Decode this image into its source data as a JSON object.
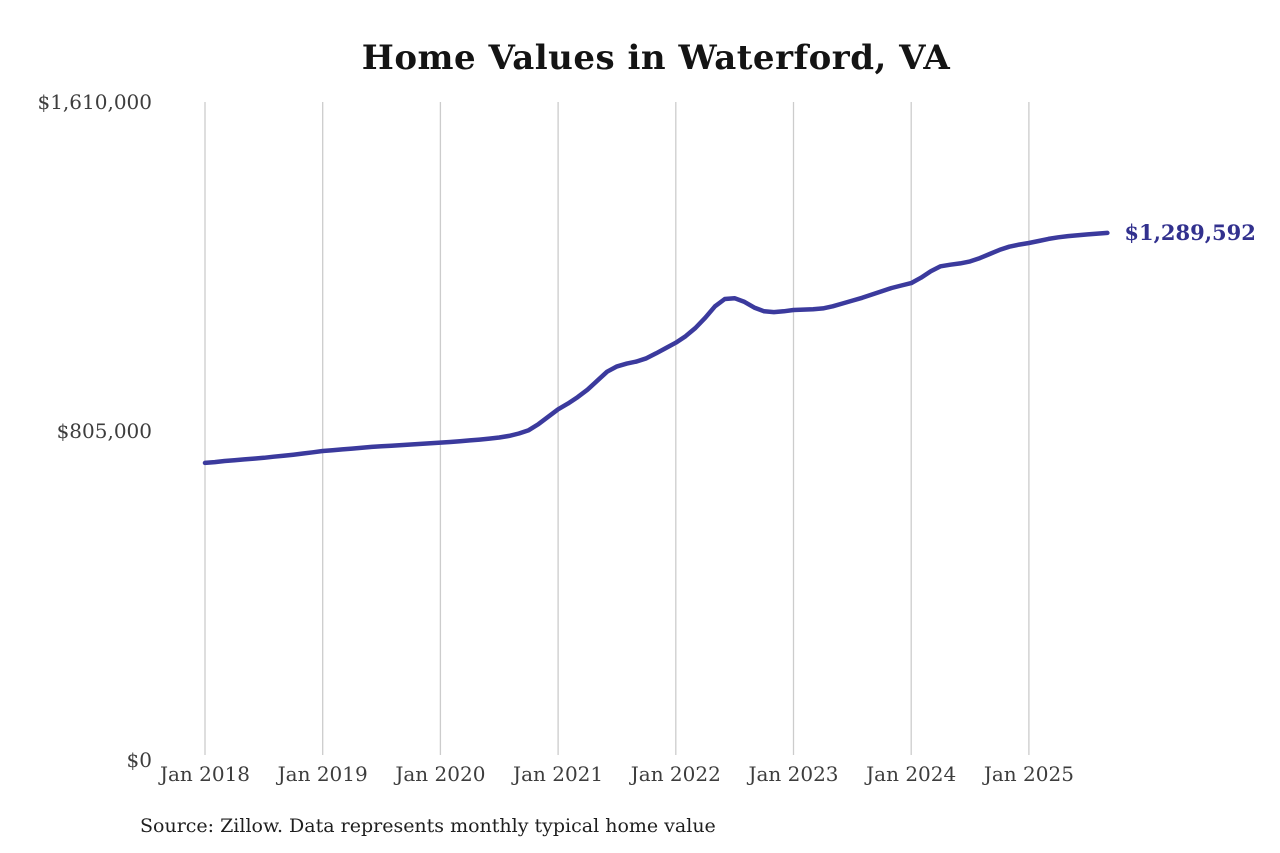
{
  "title": "Home Values in Waterford, VA",
  "source_note": "Source: Zillow. Data represents monthly typical home value",
  "end_label": "$1,289,592",
  "colors": {
    "line": "#3b3a9d",
    "end_label": "#32318e",
    "grid": "#cccccc",
    "axis_text": "#3d3d3d",
    "title_text": "#141414",
    "background": "#ffffff"
  },
  "y_axis": {
    "ticks": [
      {
        "value": 1610000,
        "label": "$1,610,000"
      },
      {
        "value": 805000,
        "label": "$805,000"
      },
      {
        "value": 0,
        "label": "$0"
      }
    ]
  },
  "x_axis": {
    "ticks": [
      "Jan 2018",
      "Jan 2019",
      "Jan 2020",
      "Jan 2021",
      "Jan 2022",
      "Jan 2023",
      "Jan 2024",
      "Jan 2025"
    ]
  },
  "chart_data": {
    "type": "line",
    "title": "Home Values in Waterford, VA",
    "xlabel": "",
    "ylabel": "",
    "unit": "USD",
    "frequency": "monthly",
    "x_start": "2018-01",
    "x_end": "2025-09",
    "ylim": [
      0,
      1610000
    ],
    "y_tick_values": [
      0,
      805000,
      1610000
    ],
    "x_tick_labels": [
      "Jan 2018",
      "Jan 2019",
      "Jan 2020",
      "Jan 2021",
      "Jan 2022",
      "Jan 2023",
      "Jan 2024",
      "Jan 2025"
    ],
    "grid": "vertical yearly gridlines only",
    "legend": "none",
    "last_point_label": "$1,289,592",
    "series": [
      {
        "name": "Monthly typical home value",
        "values": [
          727000,
          729000,
          731500,
          733500,
          735500,
          737500,
          739500,
          742000,
          744500,
          747000,
          750000,
          753000,
          756000,
          758000,
          760000,
          762000,
          764000,
          766000,
          767500,
          769000,
          770500,
          772000,
          773500,
          775000,
          776500,
          778000,
          780000,
          782000,
          784000,
          786500,
          789000,
          793000,
          799000,
          807000,
          822000,
          840000,
          858000,
          872000,
          888000,
          906000,
          928000,
          950000,
          963000,
          970000,
          975000,
          983000,
          995000,
          1008000,
          1021000,
          1037000,
          1057000,
          1082000,
          1110000,
          1128000,
          1130000,
          1121000,
          1107000,
          1098000,
          1096000,
          1098000,
          1101000,
          1102000,
          1103000,
          1105000,
          1110000,
          1117000,
          1124000,
          1131000,
          1139000,
          1147000,
          1155000,
          1161000,
          1167000,
          1180000,
          1196000,
          1208000,
          1212000,
          1215000,
          1220000,
          1228000,
          1238000,
          1248000,
          1256000,
          1261000,
          1265000,
          1270000,
          1275000,
          1279000,
          1282000,
          1284000,
          1286000,
          1288000,
          1289592
        ]
      }
    ]
  }
}
